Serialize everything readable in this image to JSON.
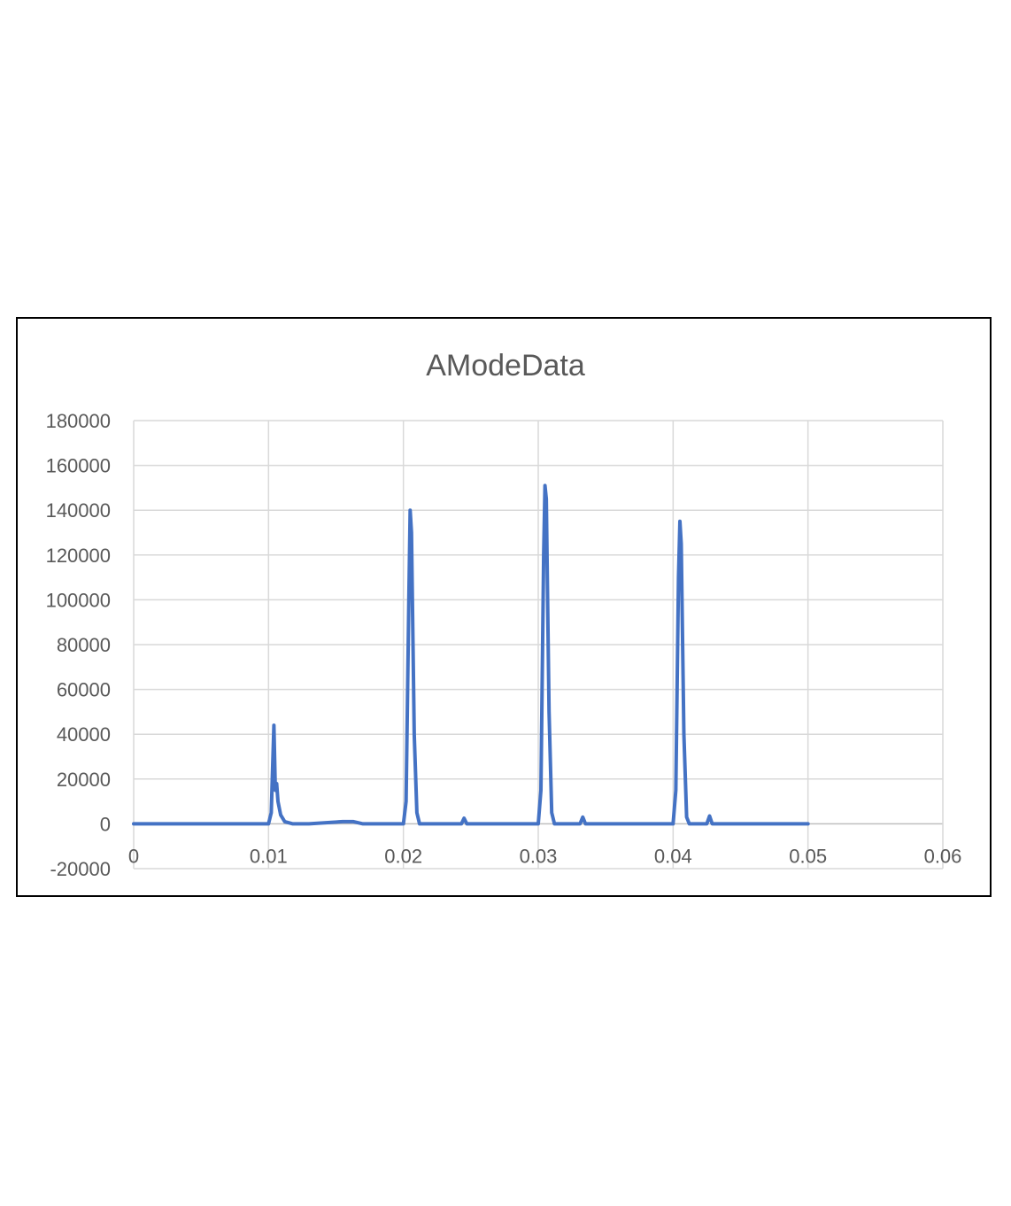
{
  "chart_data": {
    "type": "line",
    "title": "AModeData",
    "xlabel": "",
    "ylabel": "",
    "xlim": [
      0,
      0.06
    ],
    "ylim": [
      -20000,
      180000
    ],
    "x_ticks": [
      "0",
      "0.01",
      "0.02",
      "0.03",
      "0.04",
      "0.05",
      "0.06"
    ],
    "y_ticks": [
      "-20000",
      "0",
      "20000",
      "40000",
      "60000",
      "80000",
      "100000",
      "120000",
      "140000",
      "160000",
      "180000"
    ],
    "grid": true,
    "legend": "none",
    "series": [
      {
        "color": "#4472C4",
        "x": [
          0,
          0.01,
          0.0102,
          0.0104,
          0.0105,
          0.0106,
          0.0107,
          0.0109,
          0.0112,
          0.0118,
          0.0125,
          0.013,
          0.0155,
          0.0163,
          0.017,
          0.02,
          0.0202,
          0.0204,
          0.0205,
          0.0206,
          0.0208,
          0.021,
          0.0212,
          0.0243,
          0.0245,
          0.0247,
          0.03,
          0.0302,
          0.0304,
          0.0305,
          0.0306,
          0.0308,
          0.031,
          0.0312,
          0.0331,
          0.0333,
          0.0335,
          0.04,
          0.0402,
          0.0404,
          0.0405,
          0.0406,
          0.0408,
          0.041,
          0.0412,
          0.0425,
          0.0427,
          0.0429,
          0.05
        ],
        "y": [
          0,
          0,
          5000,
          44000,
          15000,
          18000,
          10000,
          4000,
          1000,
          0,
          0,
          0,
          1000,
          1000,
          0,
          0,
          10000,
          100000,
          140000,
          130000,
          40000,
          5000,
          0,
          0,
          2500,
          0,
          0,
          15000,
          120000,
          151000,
          145000,
          50000,
          5000,
          0,
          0,
          3000,
          0,
          0,
          15000,
          110000,
          135000,
          125000,
          40000,
          3000,
          0,
          0,
          3500,
          0,
          0
        ]
      }
    ]
  }
}
